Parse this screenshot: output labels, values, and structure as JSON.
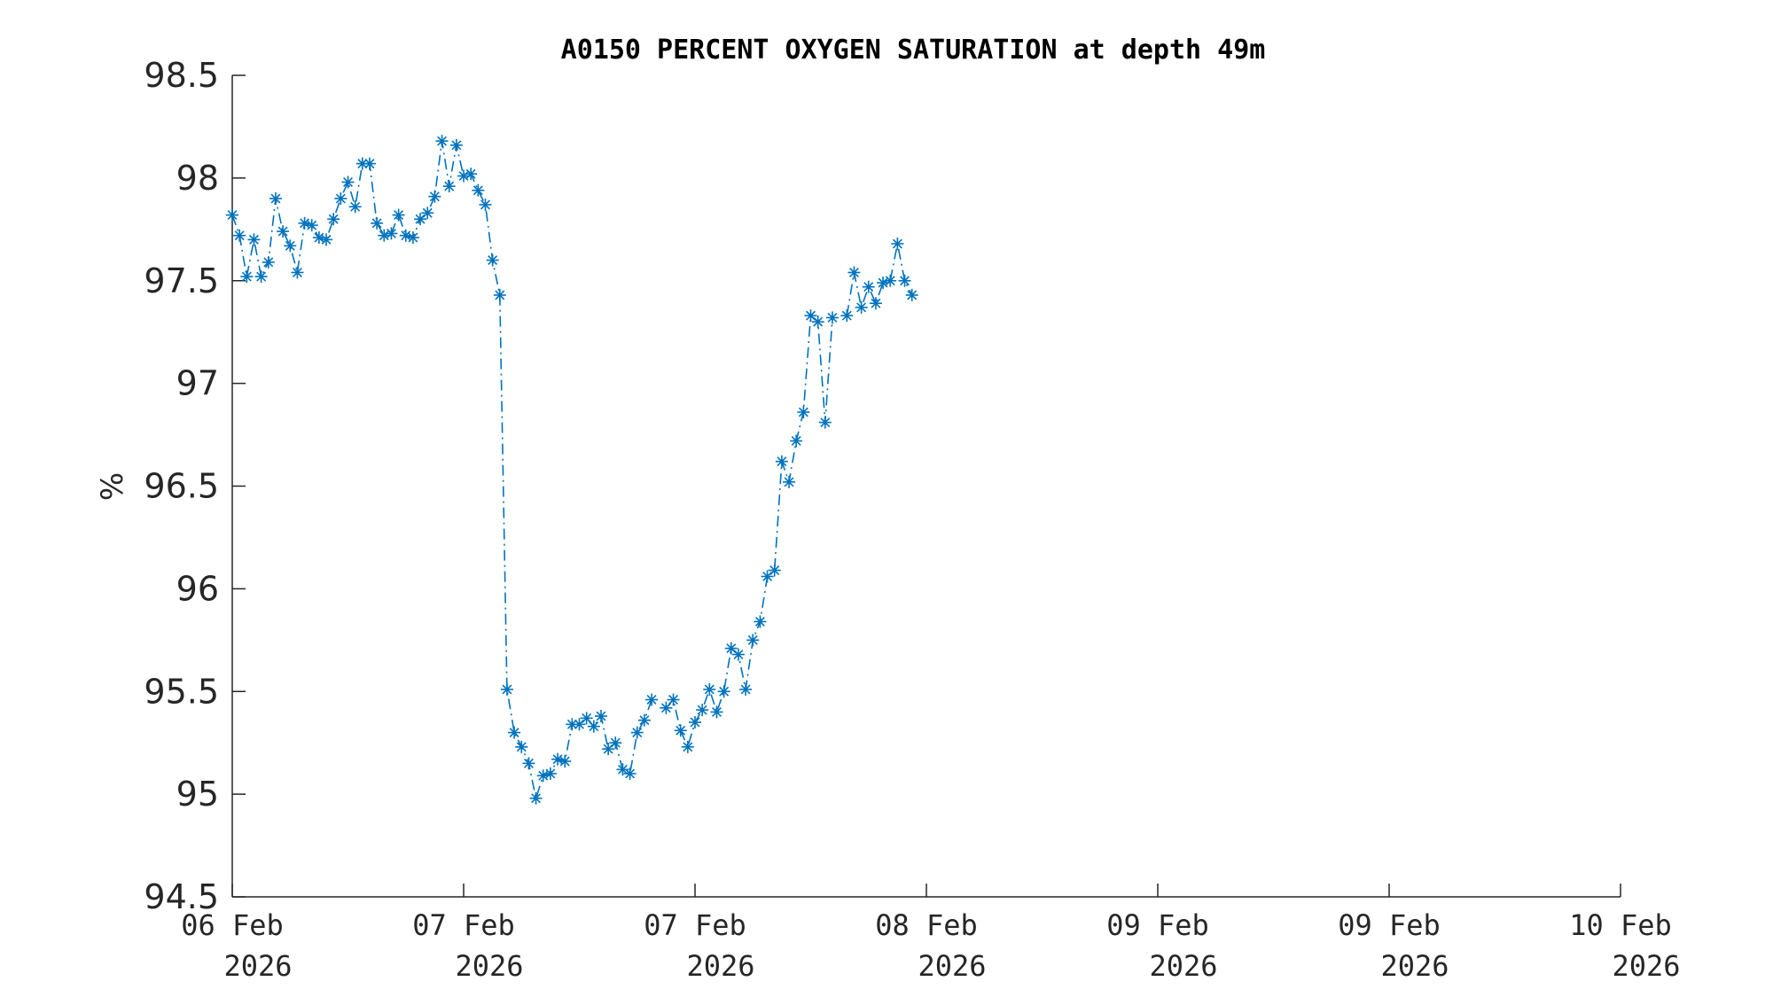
{
  "chart_data": {
    "type": "line",
    "title": "A0150 PERCENT OXYGEN SATURATION at depth 49m",
    "xlabel": "",
    "ylabel": "%",
    "ylim": [
      94.5,
      98.5
    ],
    "yticks": [
      94.5,
      95,
      95.5,
      96,
      96.5,
      97,
      97.5,
      98,
      98.5
    ],
    "ytick_labels": [
      "94.5",
      "95",
      "95.5",
      "96",
      "96.5",
      "97",
      "97.5",
      "98",
      "98.5"
    ],
    "xlim": [
      "2026-02-06 00:00",
      "2026-02-10 00:00"
    ],
    "xtick_labels": [
      {
        "day": "06 Feb",
        "year": "2026"
      },
      {
        "day": "07 Feb",
        "year": "2026"
      },
      {
        "day": "07 Feb",
        "year": "2026"
      },
      {
        "day": "08 Feb",
        "year": "2026"
      },
      {
        "day": "09 Feb",
        "year": "2026"
      },
      {
        "day": "09 Feb",
        "year": "2026"
      },
      {
        "day": "10 Feb",
        "year": "2026"
      }
    ],
    "grid": false,
    "color": "#0072BD",
    "marker": "asterisk",
    "line_style": "dash-dot",
    "series": [
      {
        "name": "",
        "segments": [
          [
            [
              "2026-02-06 00:00",
              97.82
            ],
            [
              "2026-02-06 00:30",
              97.72
            ],
            [
              "2026-02-06 01:00",
              97.52
            ],
            [
              "2026-02-06 01:30",
              97.7
            ],
            [
              "2026-02-06 02:00",
              97.52
            ],
            [
              "2026-02-06 02:30",
              97.59
            ],
            [
              "2026-02-06 03:00",
              97.9
            ],
            [
              "2026-02-06 03:30",
              97.74
            ],
            [
              "2026-02-06 04:00",
              97.67
            ],
            [
              "2026-02-06 04:30",
              97.54
            ],
            [
              "2026-02-06 05:00",
              97.78
            ],
            [
              "2026-02-06 05:30",
              97.77
            ],
            [
              "2026-02-06 06:00",
              97.71
            ],
            [
              "2026-02-06 06:30",
              97.7
            ],
            [
              "2026-02-06 07:00",
              97.8
            ],
            [
              "2026-02-06 07:30",
              97.9
            ],
            [
              "2026-02-06 08:00",
              97.98
            ],
            [
              "2026-02-06 08:30",
              97.86
            ],
            [
              "2026-02-06 09:00",
              98.07
            ],
            [
              "2026-02-06 09:30",
              98.07
            ],
            [
              "2026-02-06 10:00",
              97.78
            ],
            [
              "2026-02-06 10:30",
              97.72
            ],
            [
              "2026-02-06 11:00",
              97.73
            ],
            [
              "2026-02-06 11:30",
              97.82
            ],
            [
              "2026-02-06 12:00",
              97.72
            ],
            [
              "2026-02-06 12:30",
              97.71
            ],
            [
              "2026-02-06 13:00",
              97.8
            ],
            [
              "2026-02-06 13:30",
              97.83
            ],
            [
              "2026-02-06 14:00",
              97.91
            ],
            [
              "2026-02-06 14:30",
              98.18
            ],
            [
              "2026-02-06 15:00",
              97.96
            ],
            [
              "2026-02-06 15:30",
              98.16
            ],
            [
              "2026-02-06 16:00",
              98.01
            ],
            [
              "2026-02-06 16:30",
              98.02
            ],
            [
              "2026-02-06 17:00",
              97.94
            ],
            [
              "2026-02-06 17:30",
              97.87
            ],
            [
              "2026-02-06 18:00",
              97.6
            ],
            [
              "2026-02-06 18:30",
              97.43
            ],
            [
              "2026-02-06 19:00",
              95.51
            ],
            [
              "2026-02-06 19:30",
              95.3
            ],
            [
              "2026-02-06 20:00",
              95.23
            ],
            [
              "2026-02-06 20:30",
              95.15
            ],
            [
              "2026-02-06 21:00",
              94.98
            ],
            [
              "2026-02-06 21:30",
              95.09
            ],
            [
              "2026-02-06 22:00",
              95.1
            ],
            [
              "2026-02-06 22:30",
              95.17
            ],
            [
              "2026-02-06 23:00",
              95.16
            ],
            [
              "2026-02-06 23:30",
              95.34
            ],
            [
              "2026-02-07 00:00",
              95.34
            ],
            [
              "2026-02-07 00:30",
              95.37
            ],
            [
              "2026-02-07 01:00",
              95.33
            ],
            [
              "2026-02-07 01:30",
              95.38
            ],
            [
              "2026-02-07 02:00",
              95.22
            ],
            [
              "2026-02-07 02:30",
              95.25
            ],
            [
              "2026-02-07 03:00",
              95.12
            ],
            [
              "2026-02-07 03:30",
              95.1
            ],
            [
              "2026-02-07 04:00",
              95.3
            ],
            [
              "2026-02-07 04:30",
              95.36
            ],
            [
              "2026-02-07 05:00",
              95.46
            ]
          ],
          [
            [
              "2026-02-07 06:00",
              95.42
            ],
            [
              "2026-02-07 06:30",
              95.46
            ],
            [
              "2026-02-07 07:00",
              95.31
            ],
            [
              "2026-02-07 07:30",
              95.23
            ],
            [
              "2026-02-07 08:00",
              95.35
            ],
            [
              "2026-02-07 08:30",
              95.41
            ],
            [
              "2026-02-07 09:00",
              95.51
            ],
            [
              "2026-02-07 09:30",
              95.4
            ],
            [
              "2026-02-07 10:00",
              95.5
            ],
            [
              "2026-02-07 10:30",
              95.71
            ],
            [
              "2026-02-07 11:00",
              95.68
            ],
            [
              "2026-02-07 11:30",
              95.51
            ],
            [
              "2026-02-07 12:00",
              95.75
            ],
            [
              "2026-02-07 12:30",
              95.84
            ],
            [
              "2026-02-07 13:00",
              96.06
            ],
            [
              "2026-02-07 13:30",
              96.09
            ],
            [
              "2026-02-07 14:00",
              96.62
            ],
            [
              "2026-02-07 14:30",
              96.52
            ],
            [
              "2026-02-07 15:00",
              96.72
            ],
            [
              "2026-02-07 15:30",
              96.86
            ],
            [
              "2026-02-07 16:00",
              97.33
            ],
            [
              "2026-02-07 16:30",
              97.3
            ],
            [
              "2026-02-07 17:00",
              96.81
            ],
            [
              "2026-02-07 17:30",
              97.32
            ]
          ],
          [
            [
              "2026-02-07 18:30",
              97.33
            ],
            [
              "2026-02-07 19:00",
              97.54
            ],
            [
              "2026-02-07 19:30",
              97.37
            ],
            [
              "2026-02-07 20:00",
              97.47
            ],
            [
              "2026-02-07 20:30",
              97.39
            ],
            [
              "2026-02-07 21:00",
              97.49
            ],
            [
              "2026-02-07 21:30",
              97.5
            ],
            [
              "2026-02-07 22:00",
              97.68
            ],
            [
              "2026-02-07 22:30",
              97.5
            ],
            [
              "2026-02-07 23:00",
              97.43
            ]
          ]
        ]
      }
    ]
  }
}
